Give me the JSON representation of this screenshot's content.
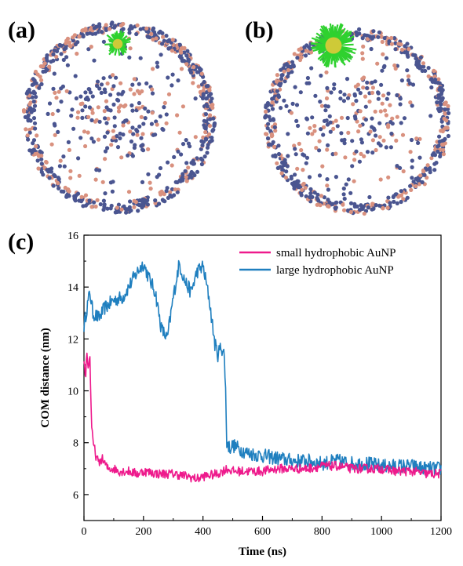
{
  "panels": {
    "a": "(a)",
    "b": "(b)",
    "c": "(c)"
  },
  "colors": {
    "small": "#ee1a8c",
    "large": "#1f7fbf",
    "bead_blue": "#4a5590",
    "bead_pink": "#d9917f",
    "np_green": "#2fd12f",
    "np_core": "#e0c93a"
  },
  "chart_data": {
    "type": "line",
    "xlabel": "Time (ns)",
    "ylabel": "COM distance (nm)",
    "xlim": [
      0,
      1200
    ],
    "ylim": [
      5,
      16
    ],
    "xticks": [
      0,
      200,
      400,
      600,
      800,
      1000,
      1200
    ],
    "yticks": [
      6,
      8,
      10,
      12,
      14,
      16
    ],
    "legend_position": "top-right",
    "series": [
      {
        "name": "small hydrophobic AuNP",
        "color": "#ee1a8c",
        "x": [
          0,
          5,
          10,
          15,
          20,
          25,
          30,
          35,
          40,
          50,
          60,
          70,
          80,
          100,
          120,
          150,
          180,
          200,
          250,
          300,
          350,
          380,
          400,
          450,
          480,
          500,
          550,
          600,
          650,
          700,
          750,
          800,
          850,
          900,
          950,
          1000,
          1050,
          1100,
          1150,
          1200
        ],
        "y": [
          11.2,
          10.5,
          11.5,
          10.8,
          11.4,
          8.8,
          8.0,
          7.8,
          7.5,
          7.2,
          7.4,
          7.2,
          7.0,
          7.0,
          6.9,
          6.9,
          6.8,
          6.9,
          6.8,
          6.8,
          6.7,
          6.6,
          6.7,
          6.8,
          7.0,
          6.9,
          6.9,
          6.9,
          7.0,
          7.0,
          7.0,
          7.1,
          7.1,
          7.0,
          7.0,
          7.0,
          6.9,
          6.9,
          6.8,
          6.8
        ]
      },
      {
        "name": "large hydrophobic AuNP",
        "color": "#1f7fbf",
        "x": [
          0,
          10,
          20,
          30,
          50,
          70,
          100,
          130,
          160,
          180,
          200,
          220,
          240,
          260,
          280,
          300,
          320,
          340,
          360,
          380,
          400,
          420,
          440,
          450,
          460,
          470,
          475,
          480,
          490,
          500,
          550,
          600,
          650,
          700,
          750,
          800,
          850,
          900,
          950,
          1000,
          1050,
          1100,
          1150,
          1200
        ],
        "y": [
          12.5,
          13.2,
          13.8,
          13.0,
          12.8,
          13.2,
          13.5,
          13.6,
          14.2,
          14.6,
          14.9,
          14.3,
          13.8,
          12.4,
          12.0,
          13.6,
          14.9,
          14.2,
          13.8,
          14.6,
          14.8,
          13.6,
          11.8,
          11.4,
          11.7,
          11.5,
          10.5,
          8.0,
          7.8,
          7.9,
          7.6,
          7.5,
          7.4,
          7.3,
          7.3,
          7.2,
          7.3,
          7.2,
          7.2,
          7.1,
          7.1,
          7.1,
          7.0,
          7.0
        ]
      }
    ]
  }
}
